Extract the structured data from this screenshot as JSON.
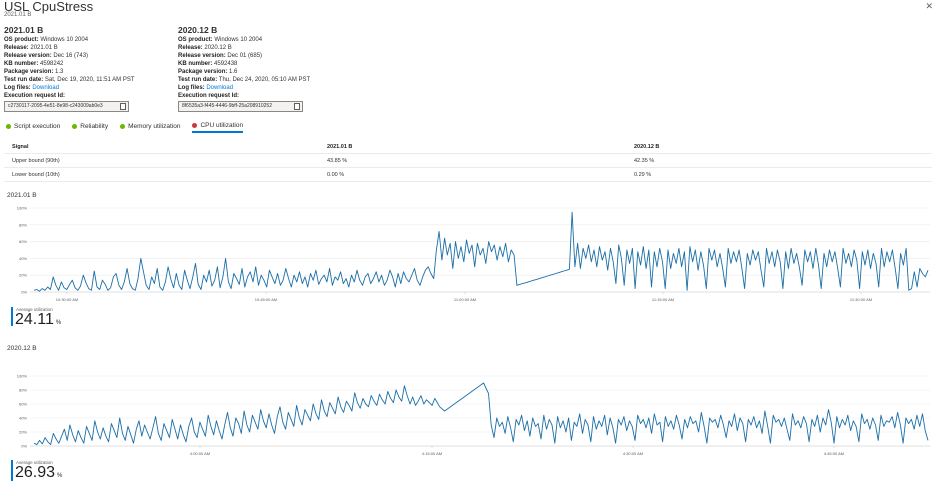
{
  "window": {
    "title": "USL CpuStress",
    "subtitle": "2021.01 B"
  },
  "builds": [
    {
      "heading": "2021.01 B",
      "fields": [
        {
          "label": "OS product:",
          "value": "Windows 10 2004"
        },
        {
          "label": "Release:",
          "value": "2021.01 B"
        },
        {
          "label": "Release version:",
          "value": "Dec 16 (743)"
        },
        {
          "label": "KB number:",
          "value": "4598242"
        },
        {
          "label": "Package version:",
          "value": "1.3"
        },
        {
          "label": "Test run date:",
          "value": "Sat, Dec 19, 2020, 11:51 AM PST"
        }
      ],
      "log_label": "Log files:",
      "log_link": "Download",
      "exec_label": "Execution request Id:",
      "exec_id": "c2730117-2095-4e51-8e98-c243009ab0e3"
    },
    {
      "heading": "2020.12 B",
      "fields": [
        {
          "label": "OS product:",
          "value": "Windows 10 2004"
        },
        {
          "label": "Release:",
          "value": "2020.12 B"
        },
        {
          "label": "Release version:",
          "value": "Dec 01 (685)"
        },
        {
          "label": "KB number:",
          "value": "4592438"
        },
        {
          "label": "Package version:",
          "value": "1.6"
        },
        {
          "label": "Test run date:",
          "value": "Thu, Dec 24, 2020, 05:10 AM PST"
        }
      ],
      "log_label": "Log files:",
      "log_link": "Download",
      "exec_label": "Execution request Id:",
      "exec_id": "8f6535a3-f445-4446-9bff-25a208910252"
    }
  ],
  "tabs": [
    {
      "label": "Script execution",
      "status": "pass"
    },
    {
      "label": "Reliability",
      "status": "pass"
    },
    {
      "label": "Memory utilization",
      "status": "pass"
    },
    {
      "label": "CPU utilization",
      "status": "fail"
    }
  ],
  "colors": {
    "pass": "#6bb700",
    "fail": "#d13438",
    "accent": "#0078d4",
    "line": "#1b6fa8"
  },
  "signals": {
    "headers": [
      "Signal",
      "2021.01 B",
      "2020.12 B"
    ],
    "rows": [
      [
        "Upper bound (90th)",
        "43.85 %",
        "42.35 %"
      ],
      [
        "Lower bound (10th)",
        "0.00 %",
        "0.29 %"
      ]
    ]
  },
  "charts_meta": [
    {
      "label": "2021.01 B",
      "avg_label": "Average utilization",
      "avg_value": "24.11",
      "avg_unit": "%"
    },
    {
      "label": "2020.12 B",
      "avg_label": "Average utilization",
      "avg_value": "26.93",
      "avg_unit": "%"
    }
  ],
  "chart_data": [
    {
      "type": "line",
      "title": "2021.01 B",
      "y_ticks": [
        "100%",
        "80%",
        "60%",
        "40%",
        "20%",
        "0%"
      ],
      "ylim": [
        0,
        100
      ],
      "x_ticks": [
        "10:30:00 AM",
        "10:45:00 AM",
        "11:00:00 AM",
        "11:15:00 AM",
        "11:30:00 AM"
      ],
      "series": [
        {
          "values": [
            2,
            3,
            1,
            4,
            2,
            6,
            3,
            18,
            8,
            2,
            12,
            5,
            3,
            9,
            14,
            5,
            2,
            7,
            20,
            11,
            4,
            2,
            25,
            6,
            3,
            14,
            9,
            2,
            5,
            18,
            22,
            8,
            3,
            12,
            28,
            10,
            4,
            2,
            16,
            40,
            24,
            8,
            3,
            18,
            10,
            28,
            6,
            2,
            12,
            30,
            15,
            5,
            22,
            8,
            3,
            26,
            14,
            4,
            18,
            34,
            9,
            3,
            20,
            12,
            26,
            7,
            14,
            30,
            5,
            18,
            40,
            12,
            4,
            22,
            16,
            9,
            28,
            6,
            18,
            24,
            12,
            30,
            8,
            20,
            14,
            6,
            26,
            18,
            10,
            22,
            8,
            14,
            28,
            16,
            6,
            20,
            12,
            24,
            10,
            18,
            6,
            22,
            14,
            26,
            9,
            16,
            20,
            12,
            28,
            8,
            18,
            14,
            24,
            10,
            16,
            6,
            20,
            12,
            26,
            14,
            8,
            18,
            22,
            10,
            16,
            24,
            12,
            20,
            8,
            14,
            26,
            18,
            6,
            22,
            10,
            24,
            16,
            12,
            20,
            28,
            14,
            8,
            18,
            26,
            30,
            22,
            16,
            50,
            72,
            38,
            64,
            44,
            58,
            28,
            60,
            40,
            54,
            36,
            62,
            46,
            56,
            30,
            58,
            44,
            52,
            34,
            60,
            48,
            56,
            38,
            54,
            42,
            58,
            36,
            50,
            44,
            8,
            9,
            10,
            11,
            12,
            13,
            14,
            15,
            16,
            17,
            18,
            19,
            20,
            21,
            22,
            23,
            24,
            25,
            26,
            27,
            95,
            30,
            58,
            28,
            52,
            40,
            56,
            36,
            50,
            30,
            54,
            38,
            48,
            26,
            52,
            36,
            10,
            56,
            40,
            8,
            50,
            34,
            52,
            4,
            48,
            32,
            54,
            28,
            50,
            6,
            48,
            30,
            52,
            36,
            4,
            50,
            28,
            46,
            34,
            52,
            30,
            48,
            2,
            54,
            36,
            50,
            26,
            48,
            32,
            4,
            52,
            38,
            50,
            30,
            46,
            28,
            6,
            52,
            34,
            48,
            36,
            50,
            28,
            4,
            46,
            32,
            50,
            38,
            48,
            26,
            6,
            52,
            34,
            48,
            30,
            50,
            36,
            4,
            48,
            28,
            52,
            34,
            46,
            30,
            8,
            50,
            36,
            48,
            28,
            52,
            32,
            4,
            46,
            30,
            50,
            36,
            48,
            28,
            6,
            52,
            34,
            46,
            30,
            50,
            38,
            4,
            48,
            32,
            50,
            28,
            46,
            34,
            6,
            52,
            30,
            48,
            36,
            50,
            28,
            4,
            46,
            32,
            52,
            2,
            4,
            24,
            6,
            28,
            22,
            18,
            26
          ]
        }
      ]
    },
    {
      "type": "line",
      "title": "2020.12 B",
      "y_ticks": [
        "100%",
        "80%",
        "60%",
        "40%",
        "20%",
        "0%"
      ],
      "ylim": [
        0,
        100
      ],
      "x_ticks": [
        "4:00:00 AM",
        "4:15:00 AM",
        "4:30:00 AM",
        "4:45:00 AM"
      ],
      "series": [
        {
          "values": [
            4,
            2,
            8,
            3,
            12,
            6,
            2,
            18,
            10,
            4,
            14,
            24,
            8,
            30,
            16,
            6,
            22,
            12,
            4,
            28,
            18,
            8,
            36,
            20,
            10,
            26,
            14,
            6,
            32,
            22,
            12,
            40,
            18,
            8,
            28,
            16,
            4,
            24,
            36,
            14,
            30,
            20,
            10,
            26,
            42,
            18,
            8,
            32,
            22,
            12,
            38,
            24,
            10,
            30,
            16,
            6,
            28,
            40,
            20,
            12,
            34,
            24,
            14,
            44,
            28,
            16,
            36,
            22,
            10,
            30,
            48,
            26,
            14,
            40,
            32,
            18,
            50,
            30,
            20,
            44,
            34,
            24,
            52,
            36,
            26,
            46,
            30,
            18,
            42,
            56,
            34,
            24,
            48,
            38,
            28,
            58,
            40,
            30,
            52,
            44,
            36,
            60,
            46,
            38,
            66,
            50,
            42,
            62,
            54,
            46,
            70,
            56,
            48,
            64,
            58,
            50,
            76,
            62,
            54,
            68,
            60,
            56,
            72,
            64,
            58,
            74,
            66,
            60,
            78,
            68,
            62,
            80,
            70,
            64,
            86,
            72,
            60,
            70,
            58,
            64,
            72,
            60,
            66,
            62,
            58,
            68,
            56,
            50,
            55,
            60,
            65,
            70,
            75,
            80,
            85,
            90,
            75,
            30,
            12,
            40,
            28,
            34,
            18,
            42,
            26,
            6,
            38,
            30,
            44,
            22,
            36,
            14,
            40,
            28,
            32,
            10,
            44,
            24,
            38,
            30,
            4,
            42,
            26,
            36,
            20,
            40,
            8,
            34,
            28,
            46,
            18,
            38,
            30,
            6,
            42,
            24,
            36,
            28,
            44,
            16,
            40,
            26,
            4,
            38,
            30,
            42,
            22,
            36,
            28,
            8,
            44,
            32,
            38,
            26,
            40,
            18,
            46,
            30,
            34,
            6,
            42,
            28,
            36,
            24,
            44,
            30,
            10,
            38,
            26,
            42,
            32,
            36,
            20,
            48,
            28,
            4,
            40,
            34,
            38,
            26,
            44,
            30,
            12,
            36,
            28,
            46,
            22,
            40,
            32,
            6,
            38,
            30,
            42,
            26,
            36,
            18,
            50,
            28,
            4,
            44,
            34,
            38,
            28,
            40,
            24,
            8,
            46,
            30,
            36,
            26,
            42,
            32,
            6,
            38,
            28,
            44,
            20,
            40,
            30,
            52,
            34,
            4,
            42,
            26,
            38,
            30,
            44,
            22,
            36,
            28,
            6,
            46,
            32,
            38,
            24,
            40,
            30,
            8,
            44,
            28,
            36,
            34,
            42,
            26,
            48,
            30,
            4,
            40,
            32,
            38,
            24,
            44,
            28,
            46,
            22,
            8
          ]
        }
      ]
    }
  ]
}
